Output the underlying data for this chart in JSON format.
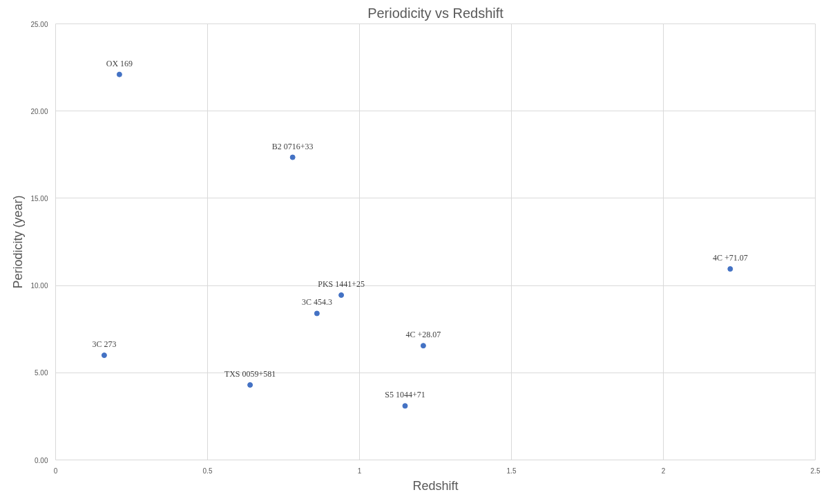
{
  "chart_data": {
    "type": "scatter",
    "title": "Periodicity vs Redshift",
    "xlabel": "Redshift",
    "ylabel": "Periodicity (year)",
    "x": [
      0.21,
      0.78,
      2.22,
      0.94,
      0.86,
      0.16,
      1.21,
      0.64,
      1.15
    ],
    "values": [
      22.1,
      17.35,
      10.95,
      9.45,
      8.4,
      6.0,
      6.55,
      4.3,
      3.1
    ],
    "color": "#4472c4",
    "marker": "circle",
    "grid": true,
    "xlim": [
      0,
      2.5
    ],
    "xticks": [
      0,
      0.5,
      1,
      1.5,
      2,
      2.5
    ],
    "ylim": [
      0,
      25
    ],
    "yticks": [
      {
        "value": 0,
        "label": "0.00"
      },
      {
        "value": 5,
        "label": "5.00"
      },
      {
        "value": 10,
        "label": "10.00"
      },
      {
        "value": 15,
        "label": "15.00"
      },
      {
        "value": 20,
        "label": "20.00"
      },
      {
        "value": 25,
        "label": "25.00"
      }
    ],
    "annotations": [
      {
        "text": "OX 169",
        "x": 0.21,
        "y": 22.1
      },
      {
        "text": "B2 0716+33",
        "x": 0.78,
        "y": 17.35
      },
      {
        "text": "4C +71.07",
        "x": 2.22,
        "y": 10.95
      },
      {
        "text": "PKS 1441+25",
        "x": 0.94,
        "y": 9.45
      },
      {
        "text": "3C 454.3",
        "x": 0.86,
        "y": 8.4
      },
      {
        "text": "3C 273",
        "x": 0.16,
        "y": 6.0
      },
      {
        "text": "4C +28.07",
        "x": 1.21,
        "y": 6.55
      },
      {
        "text": "TXS 0059+581",
        "x": 0.64,
        "y": 4.3
      },
      {
        "text": "S5 1044+71",
        "x": 1.15,
        "y": 3.1
      }
    ]
  }
}
